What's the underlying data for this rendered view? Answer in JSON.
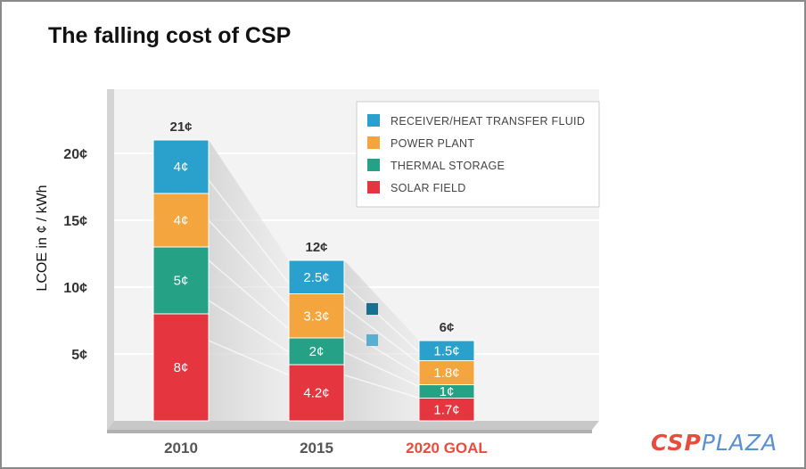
{
  "title": "The falling cost of CSP",
  "brand": {
    "part1": "CSP",
    "part2": "PLAZA"
  },
  "colors": {
    "receiver": "#2aa0cc",
    "power": "#f5a53d",
    "storage": "#25a185",
    "solar": "#e5363f"
  },
  "chart_data": {
    "type": "bar",
    "stacked": true,
    "title": "The falling cost of CSP",
    "ylabel": "LCOE in ¢ / kWh",
    "xlabel": "",
    "ylim": [
      0,
      21
    ],
    "yticks": [
      {
        "value": 5,
        "label": "5¢"
      },
      {
        "value": 10,
        "label": "10¢"
      },
      {
        "value": 15,
        "label": "15¢"
      },
      {
        "value": 20,
        "label": "20¢"
      }
    ],
    "grid": true,
    "legend_position": "top-right",
    "categories": [
      "2010",
      "2015",
      "2020 GOAL"
    ],
    "totals": [
      {
        "value": 21,
        "label": "21¢"
      },
      {
        "value": 12,
        "label": "12¢"
      },
      {
        "value": 6,
        "label": "6¢"
      }
    ],
    "series": [
      {
        "name": "SOLAR FIELD",
        "color": "#e5363f",
        "values": [
          8,
          4.2,
          1.7
        ],
        "labels": [
          "8¢",
          "4.2¢",
          "1.7¢"
        ]
      },
      {
        "name": "THERMAL STORAGE",
        "color": "#25a185",
        "values": [
          5,
          2,
          1
        ],
        "labels": [
          "5¢",
          "2¢",
          "1¢"
        ]
      },
      {
        "name": "POWER PLANT",
        "color": "#f5a53d",
        "values": [
          4,
          3.3,
          1.8
        ],
        "labels": [
          "4¢",
          "3.3¢",
          "1.8¢"
        ]
      },
      {
        "name": "RECEIVER/HEAT TRANSFER FLUID",
        "color": "#2aa0cc",
        "values": [
          4,
          2.5,
          1.5
        ],
        "labels": [
          "4¢",
          "2.5¢",
          "1.5¢"
        ]
      }
    ],
    "legend_order": [
      "RECEIVER/HEAT TRANSFER FLUID",
      "POWER PLANT",
      "THERMAL STORAGE",
      "SOLAR FIELD"
    ],
    "category_label_colors": [
      "#555555",
      "#555555",
      "#e84c3d"
    ]
  }
}
